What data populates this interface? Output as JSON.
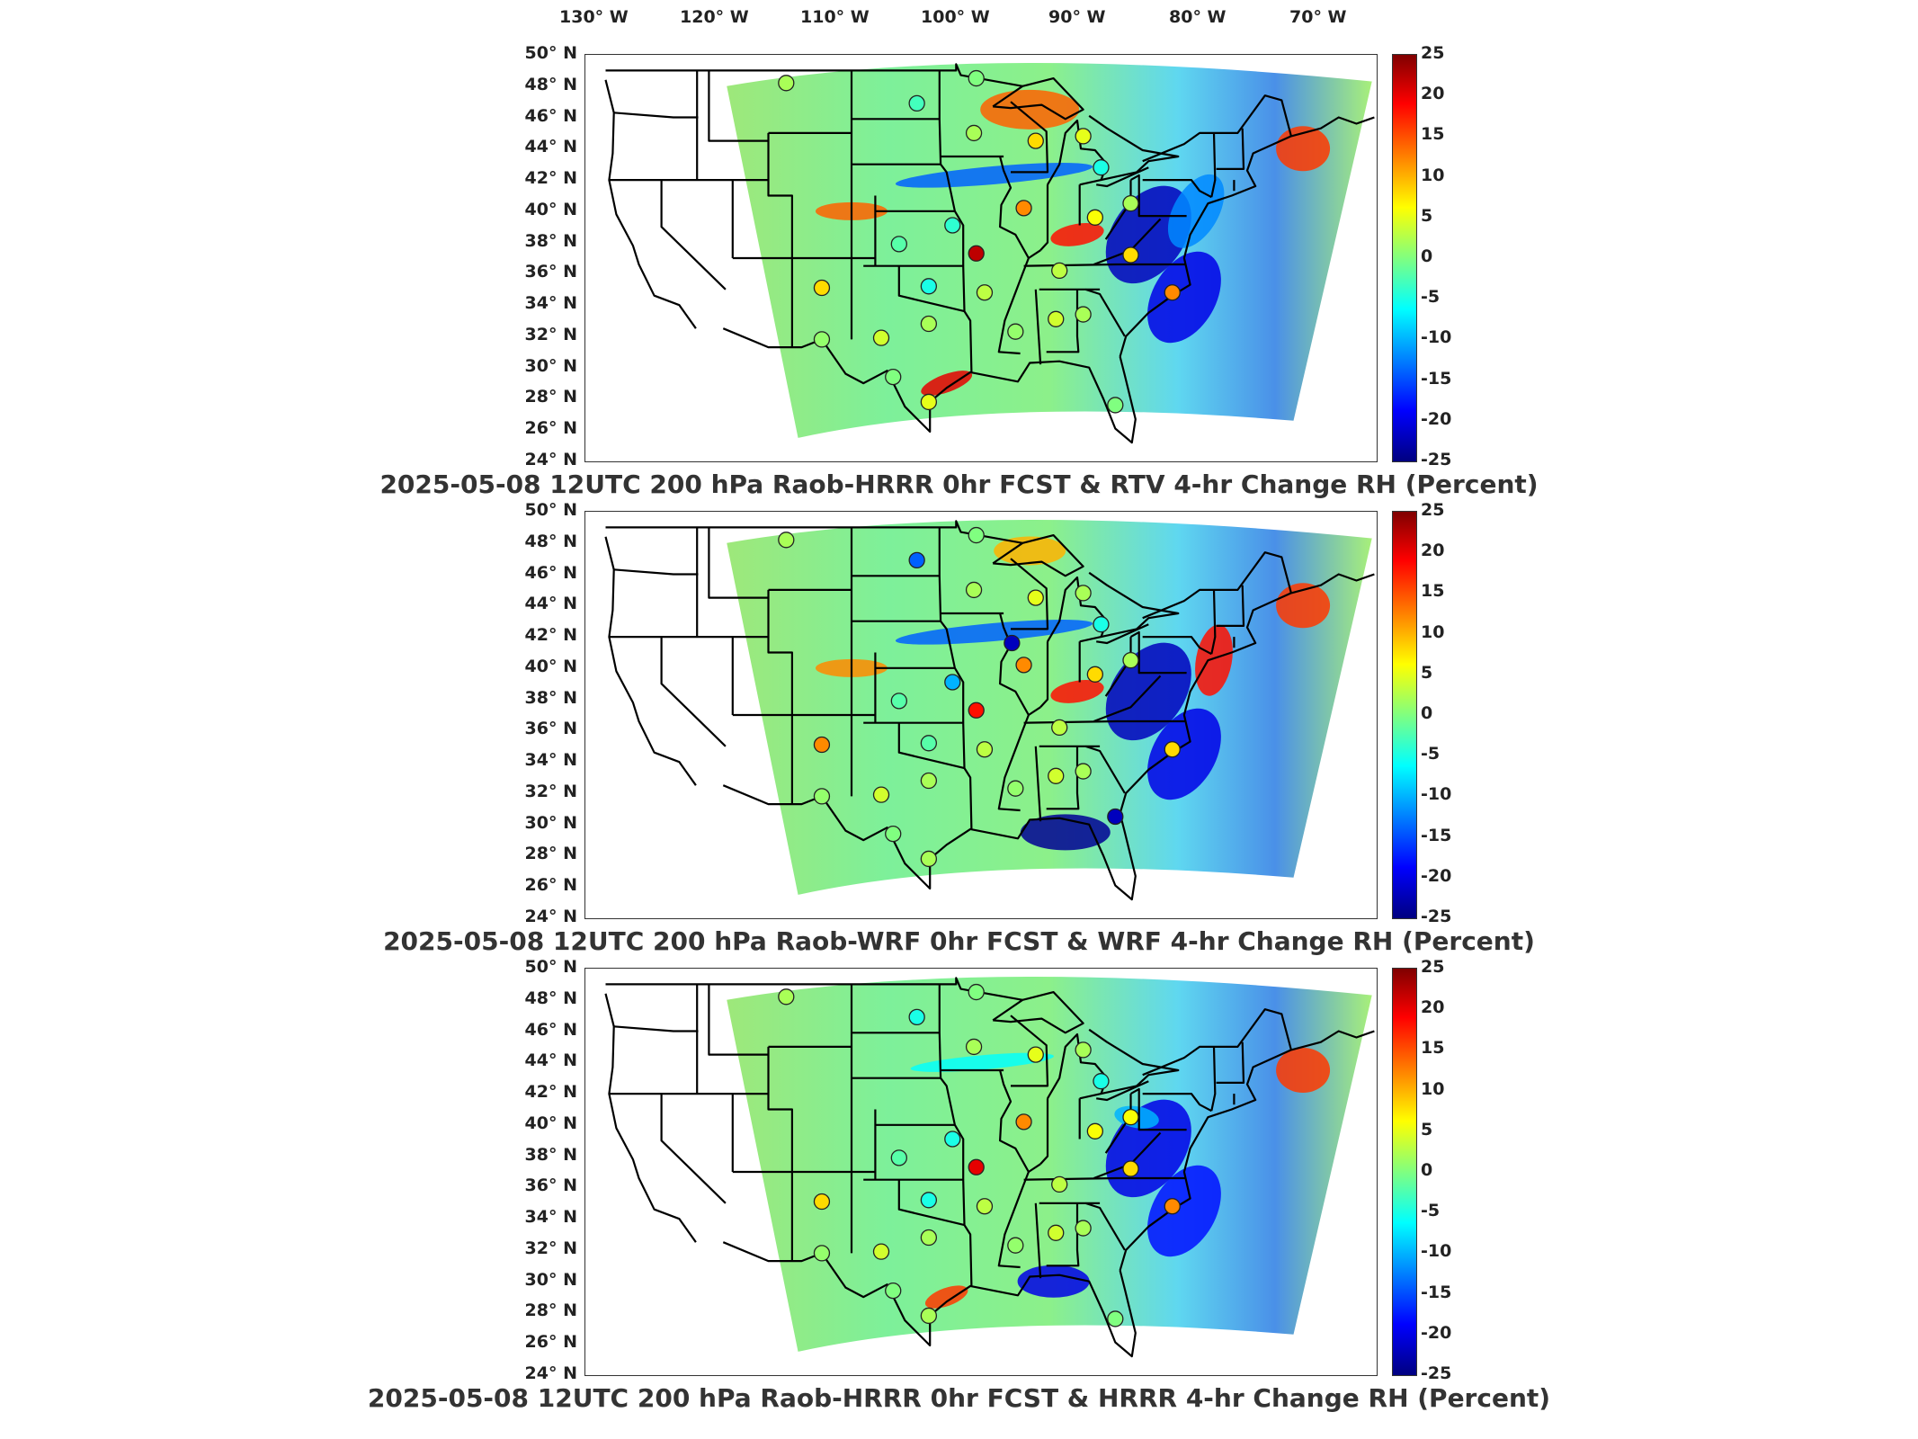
{
  "longitude_labels": [
    "130° W",
    "120° W",
    "110° W",
    "100° W",
    "90° W",
    "80° W",
    "70° W"
  ],
  "latitude_labels": [
    "50° N",
    "48° N",
    "46° N",
    "44° N",
    "42° N",
    "40° N",
    "38° N",
    "36° N",
    "34° N",
    "32° N",
    "30° N",
    "28° N",
    "26° N",
    "24° N"
  ],
  "colorbar": {
    "ticks": [
      "25",
      "20",
      "15",
      "10",
      "5",
      "0",
      "-5",
      "-10",
      "-15",
      "-20",
      "-25"
    ],
    "range": [
      -25,
      25
    ],
    "colormap": [
      "#800000",
      "#ff0000",
      "#ff8000",
      "#ffff00",
      "#80ff80",
      "#00ffff",
      "#0080ff",
      "#0000ff",
      "#000080"
    ]
  },
  "panels": [
    {
      "caption": "2025-05-08 12UTC 200 hPa Raob-HRRR 0hr FCST & RTV 4-hr Change RH (Percent)",
      "stations": [
        {
          "lon": -109.5,
          "lat": 48.2,
          "v": 2
        },
        {
          "lon": -98.5,
          "lat": 46.9,
          "v": -3
        },
        {
          "lon": -93.5,
          "lat": 48.5,
          "v": 0
        },
        {
          "lon": -93.7,
          "lat": 45.0,
          "v": 2
        },
        {
          "lon": -88.5,
          "lat": 44.5,
          "v": 8
        },
        {
          "lon": -84.5,
          "lat": 44.8,
          "v": 5
        },
        {
          "lon": -83.0,
          "lat": 42.8,
          "v": -5
        },
        {
          "lon": -89.5,
          "lat": 40.2,
          "v": 12
        },
        {
          "lon": -83.5,
          "lat": 39.6,
          "v": 6
        },
        {
          "lon": -80.5,
          "lat": 40.5,
          "v": 2
        },
        {
          "lon": -95.5,
          "lat": 39.1,
          "v": -4
        },
        {
          "lon": -100.0,
          "lat": 37.9,
          "v": -2
        },
        {
          "lon": -93.5,
          "lat": 37.3,
          "v": 22
        },
        {
          "lon": -80.5,
          "lat": 37.2,
          "v": 8
        },
        {
          "lon": -86.5,
          "lat": 36.2,
          "v": 3
        },
        {
          "lon": -92.8,
          "lat": 34.8,
          "v": 3
        },
        {
          "lon": -97.5,
          "lat": 35.2,
          "v": -5
        },
        {
          "lon": -106.5,
          "lat": 35.1,
          "v": 8
        },
        {
          "lon": -77.0,
          "lat": 34.8,
          "v": 12
        },
        {
          "lon": -84.5,
          "lat": 33.4,
          "v": 2
        },
        {
          "lon": -86.8,
          "lat": 33.1,
          "v": 4
        },
        {
          "lon": -90.2,
          "lat": 32.3,
          "v": 1
        },
        {
          "lon": -97.5,
          "lat": 32.8,
          "v": 2
        },
        {
          "lon": -101.5,
          "lat": 31.9,
          "v": 4
        },
        {
          "lon": -106.5,
          "lat": 31.8,
          "v": 1
        },
        {
          "lon": -100.5,
          "lat": 29.4,
          "v": 0
        },
        {
          "lon": -97.5,
          "lat": 27.8,
          "v": 5
        },
        {
          "lon": -81.8,
          "lat": 27.6,
          "v": 0
        }
      ]
    },
    {
      "caption": "2025-05-08 12UTC 200 hPa Raob-WRF 0hr FCST & WRF 4-hr Change RH (Percent)",
      "stations": [
        {
          "lon": -109.5,
          "lat": 48.2,
          "v": 2
        },
        {
          "lon": -98.5,
          "lat": 46.9,
          "v": -14
        },
        {
          "lon": -93.5,
          "lat": 48.5,
          "v": 0
        },
        {
          "lon": -93.7,
          "lat": 45.0,
          "v": 2
        },
        {
          "lon": -88.5,
          "lat": 44.5,
          "v": 5
        },
        {
          "lon": -84.5,
          "lat": 44.8,
          "v": 2
        },
        {
          "lon": -83.0,
          "lat": 42.8,
          "v": -5
        },
        {
          "lon": -90.5,
          "lat": 41.6,
          "v": -22
        },
        {
          "lon": -89.5,
          "lat": 40.2,
          "v": 12
        },
        {
          "lon": -83.5,
          "lat": 39.6,
          "v": 8
        },
        {
          "lon": -80.5,
          "lat": 40.5,
          "v": 2
        },
        {
          "lon": -95.5,
          "lat": 39.1,
          "v": -10
        },
        {
          "lon": -100.0,
          "lat": 37.9,
          "v": -2
        },
        {
          "lon": -93.5,
          "lat": 37.3,
          "v": 18
        },
        {
          "lon": -86.5,
          "lat": 36.2,
          "v": 3
        },
        {
          "lon": -92.8,
          "lat": 34.8,
          "v": 3
        },
        {
          "lon": -97.5,
          "lat": 35.2,
          "v": -2
        },
        {
          "lon": -106.5,
          "lat": 35.1,
          "v": 12
        },
        {
          "lon": -77.0,
          "lat": 34.8,
          "v": 8
        },
        {
          "lon": -84.5,
          "lat": 33.4,
          "v": 2
        },
        {
          "lon": -86.8,
          "lat": 33.1,
          "v": 4
        },
        {
          "lon": -90.2,
          "lat": 32.3,
          "v": 1
        },
        {
          "lon": -97.5,
          "lat": 32.8,
          "v": 2
        },
        {
          "lon": -101.5,
          "lat": 31.9,
          "v": 4
        },
        {
          "lon": -106.5,
          "lat": 31.8,
          "v": 1
        },
        {
          "lon": -100.5,
          "lat": 29.4,
          "v": 0
        },
        {
          "lon": -97.5,
          "lat": 27.8,
          "v": 2
        },
        {
          "lon": -81.8,
          "lat": 30.5,
          "v": -22
        }
      ]
    },
    {
      "caption": "2025-05-08 12UTC 200 hPa Raob-HRRR 0hr FCST & HRRR 4-hr Change RH (Percent)",
      "stations": [
        {
          "lon": -109.5,
          "lat": 48.2,
          "v": 2
        },
        {
          "lon": -98.5,
          "lat": 46.9,
          "v": -5
        },
        {
          "lon": -93.5,
          "lat": 48.5,
          "v": 0
        },
        {
          "lon": -93.7,
          "lat": 45.0,
          "v": 2
        },
        {
          "lon": -88.5,
          "lat": 44.5,
          "v": 5
        },
        {
          "lon": -84.5,
          "lat": 44.8,
          "v": 2
        },
        {
          "lon": -83.0,
          "lat": 42.8,
          "v": -5
        },
        {
          "lon": -89.5,
          "lat": 40.2,
          "v": 12
        },
        {
          "lon": -83.5,
          "lat": 39.6,
          "v": 6
        },
        {
          "lon": -80.5,
          "lat": 40.5,
          "v": 6
        },
        {
          "lon": -95.5,
          "lat": 39.1,
          "v": -5
        },
        {
          "lon": -100.0,
          "lat": 37.9,
          "v": -2
        },
        {
          "lon": -93.5,
          "lat": 37.3,
          "v": 20
        },
        {
          "lon": -80.5,
          "lat": 37.2,
          "v": 8
        },
        {
          "lon": -86.5,
          "lat": 36.2,
          "v": 3
        },
        {
          "lon": -92.8,
          "lat": 34.8,
          "v": 3
        },
        {
          "lon": -97.5,
          "lat": 35.2,
          "v": -5
        },
        {
          "lon": -106.5,
          "lat": 35.1,
          "v": 8
        },
        {
          "lon": -77.0,
          "lat": 34.8,
          "v": 12
        },
        {
          "lon": -84.5,
          "lat": 33.4,
          "v": 2
        },
        {
          "lon": -86.8,
          "lat": 33.1,
          "v": 4
        },
        {
          "lon": -90.2,
          "lat": 32.3,
          "v": 1
        },
        {
          "lon": -97.5,
          "lat": 32.8,
          "v": 2
        },
        {
          "lon": -101.5,
          "lat": 31.9,
          "v": 4
        },
        {
          "lon": -106.5,
          "lat": 31.8,
          "v": 1
        },
        {
          "lon": -100.5,
          "lat": 29.4,
          "v": 0
        },
        {
          "lon": -97.5,
          "lat": 27.8,
          "v": 2
        },
        {
          "lon": -81.8,
          "lat": 27.6,
          "v": 0
        }
      ]
    }
  ]
}
